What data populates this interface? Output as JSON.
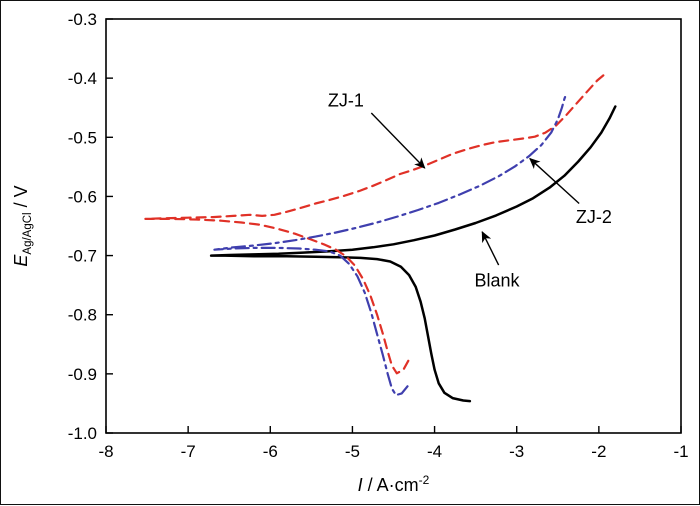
{
  "figure": {
    "background": "#ffffff",
    "border_color": "#111111"
  },
  "chart_data": {
    "type": "line",
    "title": "",
    "xlabel": "I / A·cm⁻²",
    "ylabel": "E_Ag/AgCl / V",
    "xlabel_parts": {
      "var_italic": "I",
      "mid": " / A·cm",
      "sup": "-2"
    },
    "ylabel_parts": {
      "var_italic": "E",
      "sub": "Ag/AgCl",
      "mid": " / V"
    },
    "xlim": [
      -8,
      -1
    ],
    "ylim": [
      -1.0,
      -0.3
    ],
    "x_ticks": [
      -8,
      -7,
      -6,
      -5,
      -4,
      -3,
      -2,
      -1
    ],
    "x_tick_labels": [
      "-8",
      "-7",
      "-6",
      "-5",
      "-4",
      "-3",
      "-2",
      "-1"
    ],
    "y_ticks": [
      -1.0,
      -0.9,
      -0.8,
      -0.7,
      -0.6,
      -0.5,
      -0.4,
      -0.3
    ],
    "y_tick_labels": [
      "-1.0",
      "-0.9",
      "-0.8",
      "-0.7",
      "-0.6",
      "-0.5",
      "-0.4",
      "-0.3"
    ],
    "grid": false,
    "legend_position": "none",
    "series": [
      {
        "name": "Blank",
        "color": "#000000",
        "line_style": "solid",
        "line_width": 2.5,
        "points": [
          [
            -3.57,
            -0.946
          ],
          [
            -3.65,
            -0.945
          ],
          [
            -3.78,
            -0.941
          ],
          [
            -3.88,
            -0.932
          ],
          [
            -3.95,
            -0.916
          ],
          [
            -4.0,
            -0.893
          ],
          [
            -4.04,
            -0.866
          ],
          [
            -4.08,
            -0.836
          ],
          [
            -4.12,
            -0.806
          ],
          [
            -4.17,
            -0.778
          ],
          [
            -4.23,
            -0.753
          ],
          [
            -4.31,
            -0.733
          ],
          [
            -4.41,
            -0.719
          ],
          [
            -4.54,
            -0.71
          ],
          [
            -4.7,
            -0.706
          ],
          [
            -4.9,
            -0.704
          ],
          [
            -5.15,
            -0.703
          ],
          [
            -5.45,
            -0.702
          ],
          [
            -5.8,
            -0.701
          ],
          [
            -6.2,
            -0.701
          ],
          [
            -6.55,
            -0.7
          ],
          [
            -6.72,
            -0.7
          ],
          [
            -6.5,
            -0.699
          ],
          [
            -6.2,
            -0.698
          ],
          [
            -5.9,
            -0.697
          ],
          [
            -5.6,
            -0.695
          ],
          [
            -5.3,
            -0.693
          ],
          [
            -5.0,
            -0.69
          ],
          [
            -4.75,
            -0.686
          ],
          [
            -4.5,
            -0.681
          ],
          [
            -4.25,
            -0.674
          ],
          [
            -4.0,
            -0.666
          ],
          [
            -3.75,
            -0.656
          ],
          [
            -3.5,
            -0.645
          ],
          [
            -3.25,
            -0.632
          ],
          [
            -3.0,
            -0.617
          ],
          [
            -2.8,
            -0.603
          ],
          [
            -2.6,
            -0.585
          ],
          [
            -2.42,
            -0.565
          ],
          [
            -2.25,
            -0.541
          ],
          [
            -2.1,
            -0.517
          ],
          [
            -1.97,
            -0.492
          ],
          [
            -1.87,
            -0.468
          ],
          [
            -1.8,
            -0.448
          ]
        ]
      },
      {
        "name": "ZJ-1",
        "color": "#e03127",
        "line_style": "dashed",
        "line_width": 2.2,
        "points": [
          [
            -4.32,
            -0.878
          ],
          [
            -4.38,
            -0.893
          ],
          [
            -4.46,
            -0.899
          ],
          [
            -4.52,
            -0.886
          ],
          [
            -4.57,
            -0.862
          ],
          [
            -4.63,
            -0.832
          ],
          [
            -4.7,
            -0.8
          ],
          [
            -4.78,
            -0.768
          ],
          [
            -4.87,
            -0.74
          ],
          [
            -4.97,
            -0.717
          ],
          [
            -5.08,
            -0.701
          ],
          [
            -5.2,
            -0.69
          ],
          [
            -5.35,
            -0.681
          ],
          [
            -5.52,
            -0.672
          ],
          [
            -5.7,
            -0.663
          ],
          [
            -5.9,
            -0.655
          ],
          [
            -6.12,
            -0.648
          ],
          [
            -6.35,
            -0.644
          ],
          [
            -6.6,
            -0.641
          ],
          [
            -6.9,
            -0.639
          ],
          [
            -7.2,
            -0.638
          ],
          [
            -7.52,
            -0.638
          ],
          [
            -7.3,
            -0.637
          ],
          [
            -7.0,
            -0.636
          ],
          [
            -6.7,
            -0.635
          ],
          [
            -6.45,
            -0.633
          ],
          [
            -6.25,
            -0.631
          ],
          [
            -6.1,
            -0.633
          ],
          [
            -5.95,
            -0.631
          ],
          [
            -5.8,
            -0.626
          ],
          [
            -5.62,
            -0.619
          ],
          [
            -5.45,
            -0.612
          ],
          [
            -5.28,
            -0.606
          ],
          [
            -5.1,
            -0.599
          ],
          [
            -4.92,
            -0.591
          ],
          [
            -4.75,
            -0.582
          ],
          [
            -4.58,
            -0.572
          ],
          [
            -4.42,
            -0.562
          ],
          [
            -4.28,
            -0.556
          ],
          [
            -4.12,
            -0.548
          ],
          [
            -3.95,
            -0.538
          ],
          [
            -3.78,
            -0.528
          ],
          [
            -3.6,
            -0.52
          ],
          [
            -3.42,
            -0.513
          ],
          [
            -3.25,
            -0.508
          ],
          [
            -3.08,
            -0.505
          ],
          [
            -2.92,
            -0.502
          ],
          [
            -2.78,
            -0.499
          ],
          [
            -2.65,
            -0.492
          ],
          [
            -2.52,
            -0.48
          ],
          [
            -2.4,
            -0.463
          ],
          [
            -2.28,
            -0.444
          ],
          [
            -2.15,
            -0.424
          ],
          [
            -2.02,
            -0.404
          ],
          [
            -1.9,
            -0.39
          ]
        ]
      },
      {
        "name": "ZJ-2",
        "color": "#3f3fae",
        "line_style": "dashdot",
        "line_width": 2.2,
        "points": [
          [
            -4.33,
            -0.921
          ],
          [
            -4.4,
            -0.933
          ],
          [
            -4.47,
            -0.936
          ],
          [
            -4.52,
            -0.925
          ],
          [
            -4.57,
            -0.9
          ],
          [
            -4.63,
            -0.868
          ],
          [
            -4.7,
            -0.833
          ],
          [
            -4.77,
            -0.797
          ],
          [
            -4.85,
            -0.763
          ],
          [
            -4.94,
            -0.735
          ],
          [
            -5.04,
            -0.714
          ],
          [
            -5.15,
            -0.7
          ],
          [
            -5.28,
            -0.693
          ],
          [
            -5.45,
            -0.69
          ],
          [
            -5.65,
            -0.688
          ],
          [
            -5.9,
            -0.687
          ],
          [
            -6.2,
            -0.687
          ],
          [
            -6.45,
            -0.688
          ],
          [
            -6.68,
            -0.69
          ],
          [
            -6.45,
            -0.686
          ],
          [
            -6.2,
            -0.683
          ],
          [
            -5.95,
            -0.679
          ],
          [
            -5.7,
            -0.674
          ],
          [
            -5.45,
            -0.668
          ],
          [
            -5.2,
            -0.661
          ],
          [
            -4.95,
            -0.653
          ],
          [
            -4.7,
            -0.644
          ],
          [
            -4.45,
            -0.634
          ],
          [
            -4.2,
            -0.623
          ],
          [
            -3.95,
            -0.611
          ],
          [
            -3.7,
            -0.597
          ],
          [
            -3.45,
            -0.582
          ],
          [
            -3.22,
            -0.566
          ],
          [
            -3.02,
            -0.549
          ],
          [
            -2.85,
            -0.532
          ],
          [
            -2.7,
            -0.513
          ],
          [
            -2.58,
            -0.492
          ],
          [
            -2.5,
            -0.47
          ],
          [
            -2.45,
            -0.45
          ],
          [
            -2.42,
            -0.435
          ],
          [
            -2.4,
            -0.428
          ]
        ]
      }
    ],
    "annotations": [
      {
        "text": "ZJ-1",
        "x": -5.08,
        "y": -0.438,
        "arrow_from": [
          -4.77,
          -0.459
        ],
        "arrow_to": [
          -4.12,
          -0.552
        ]
      },
      {
        "text": "ZJ-2",
        "x": -2.06,
        "y": -0.635,
        "arrow_from": [
          -2.24,
          -0.612
        ],
        "arrow_to": [
          -2.84,
          -0.536
        ]
      },
      {
        "text": "Blank",
        "x": -3.24,
        "y": -0.742,
        "arrow_from": [
          -3.22,
          -0.716
        ],
        "arrow_to": [
          -3.42,
          -0.66
        ]
      }
    ]
  }
}
